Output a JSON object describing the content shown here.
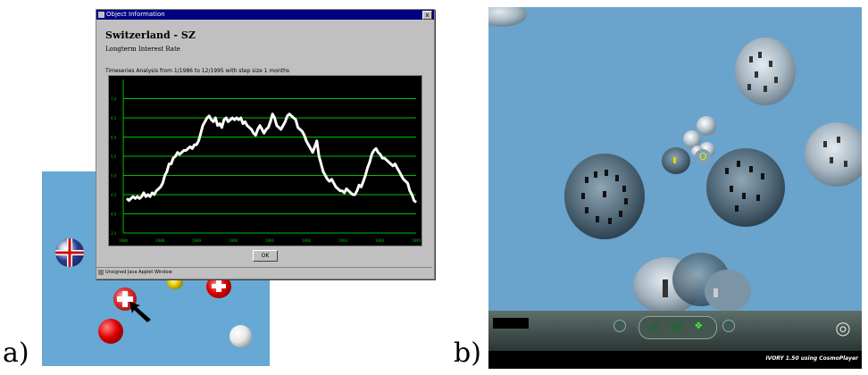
{
  "panel_labels": {
    "a": "a)",
    "b": "b)"
  },
  "dialog": {
    "window_title": "Object Information",
    "close_label": "x",
    "heading": "Switzerland - SZ",
    "subtitle": "Longterm Interest Rate",
    "description": "Timeseries Analysis from 1/1986 to 12/1995 with step size 1 months",
    "ok_label": "OK",
    "status": "Unsigned Java Applet Window"
  },
  "chart_data": {
    "type": "line",
    "x_tick_labels": [
      "1986",
      "1988",
      "1989",
      "1990",
      "1991",
      "1992",
      "1993",
      "1994",
      "1995"
    ],
    "y_tick_labels": [
      "7.0",
      "6.5",
      "6.0",
      "5.5",
      "5.0",
      "4.5",
      "4.0",
      "3.5"
    ],
    "ylim": [
      3.5,
      7.5
    ],
    "grid": true,
    "values": [
      4.4,
      4.35,
      4.4,
      4.45,
      4.4,
      4.45,
      4.4,
      4.45,
      4.55,
      4.45,
      4.5,
      4.45,
      4.55,
      4.5,
      4.6,
      4.65,
      4.7,
      4.8,
      5.0,
      5.1,
      5.3,
      5.3,
      5.45,
      5.5,
      5.6,
      5.55,
      5.6,
      5.65,
      5.65,
      5.7,
      5.75,
      5.7,
      5.8,
      5.8,
      5.9,
      6.1,
      6.3,
      6.4,
      6.5,
      6.55,
      6.45,
      6.4,
      6.5,
      6.3,
      6.35,
      6.25,
      6.45,
      6.5,
      6.4,
      6.45,
      6.5,
      6.45,
      6.5,
      6.45,
      6.5,
      6.35,
      6.4,
      6.3,
      6.25,
      6.2,
      6.1,
      6.05,
      6.2,
      6.3,
      6.2,
      6.1,
      6.2,
      6.25,
      6.4,
      6.6,
      6.5,
      6.3,
      6.25,
      6.2,
      6.3,
      6.4,
      6.55,
      6.6,
      6.55,
      6.5,
      6.45,
      6.25,
      6.2,
      6.15,
      6.05,
      5.9,
      5.8,
      5.7,
      5.6,
      5.75,
      5.9,
      5.5,
      5.3,
      5.1,
      5.0,
      4.9,
      4.85,
      4.9,
      4.8,
      4.7,
      4.65,
      4.6,
      4.6,
      4.55,
      4.65,
      4.6,
      4.55,
      4.5,
      4.5,
      4.6,
      4.75,
      4.7,
      4.85,
      5.0,
      5.2,
      5.35,
      5.55,
      5.65,
      5.7,
      5.6,
      5.55,
      5.45,
      5.45,
      5.4,
      5.35,
      5.3,
      5.25,
      5.3,
      5.2,
      5.1,
      5.0,
      4.9,
      4.85,
      4.8,
      4.6,
      4.5,
      4.35,
      4.3
    ]
  },
  "scene_b": {
    "status_label": "IVORY 1.50 using CosmoPlayer",
    "marker_label": "O"
  },
  "colors": {
    "scene_bg": "#67a8d4",
    "chart_line": "#ffffff",
    "chart_grid": "#00c000",
    "title_bar": "#000080"
  }
}
